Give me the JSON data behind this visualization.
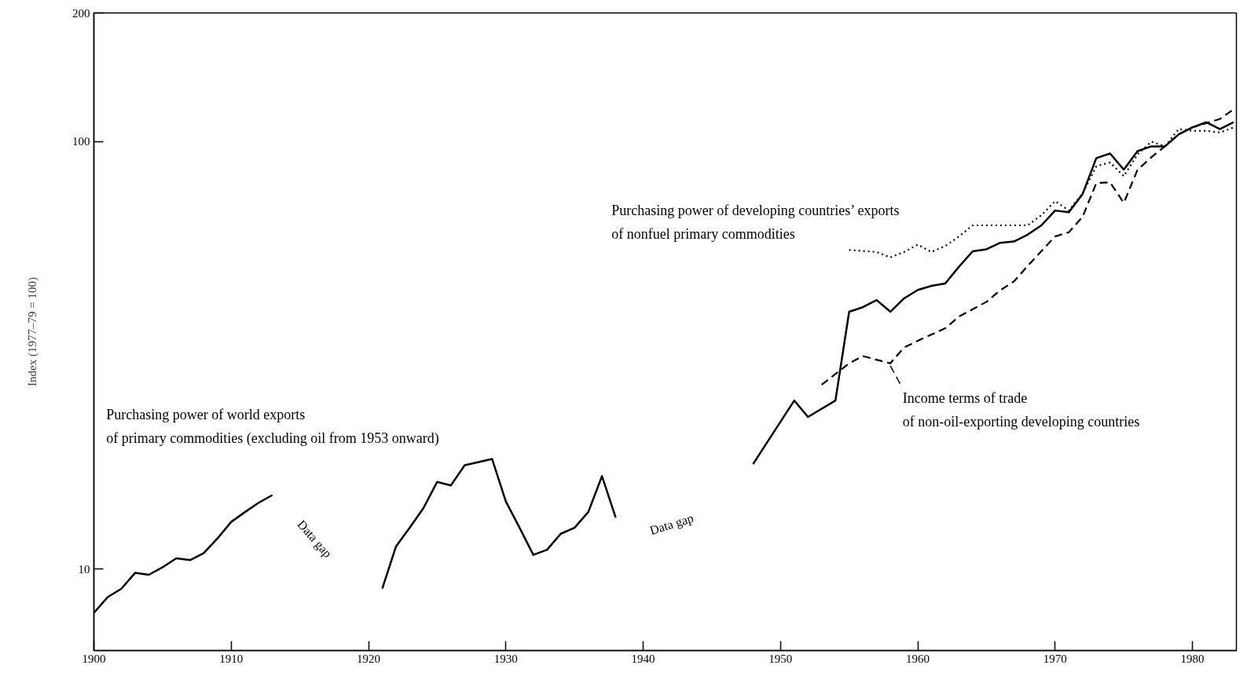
{
  "chart_data": {
    "type": "line",
    "ylabel": "Index (1977–79 = 100)",
    "log": "y",
    "xlim": [
      1900,
      1983.2
    ],
    "ylim": [
      6.45,
      200
    ],
    "xticks": [
      1900,
      1910,
      1920,
      1930,
      1940,
      1950,
      1960,
      1970,
      1980
    ],
    "yticks": [
      10,
      100,
      200
    ],
    "grid": false,
    "annotations": [
      "Data gap",
      "Data gap"
    ],
    "series": [
      {
        "name": "Purchasing power of world exports\nof primary commodities (excluding oil from 1953 onward)",
        "color": "#000000",
        "line_style": "solid",
        "x": [
          1900,
          1901,
          1902,
          1903,
          1904,
          1905,
          1906,
          1907,
          1908,
          1909,
          1910,
          1911,
          1912,
          1913,
          1914,
          1921,
          1922,
          1923,
          1924,
          1925,
          1926,
          1927,
          1928,
          1929,
          1930,
          1931,
          1932,
          1933,
          1934,
          1935,
          1936,
          1937,
          1938,
          1939,
          1948,
          1951,
          1952,
          1954,
          1955,
          1956,
          1957,
          1958,
          1959,
          1960,
          1961,
          1962,
          1963,
          1964,
          1965,
          1966,
          1967,
          1968,
          1969,
          1970,
          1971,
          1972,
          1973,
          1974,
          1975,
          1976,
          1977,
          1978,
          1979,
          1980,
          1981,
          1982,
          1983
        ],
        "values": [
          7.9,
          8.6,
          9.0,
          9.8,
          9.7,
          10.1,
          10.6,
          10.5,
          10.9,
          11.8,
          12.9,
          13.6,
          14.3,
          14.9,
          null,
          9.0,
          11.3,
          12.5,
          13.9,
          16.0,
          15.7,
          17.5,
          17.8,
          18.1,
          14.4,
          12.5,
          10.8,
          11.1,
          12.1,
          12.5,
          13.6,
          16.5,
          13.2,
          null,
          17.6,
          24.8,
          22.7,
          24.8,
          40,
          41,
          42.6,
          40,
          43,
          45,
          46,
          46.6,
          51,
          55.4,
          56,
          58,
          58.4,
          60.6,
          63.7,
          69,
          68.4,
          75.4,
          91.5,
          93.8,
          86,
          95,
          97.5,
          97.5,
          104,
          108,
          111,
          107,
          111
        ]
      },
      {
        "name": "Purchasing power of developing countries’ exports\nof nonfuel primary commodities",
        "color": "#000000",
        "line_style": "dotted",
        "x": [
          1955,
          1957,
          1958,
          1959,
          1960,
          1961,
          1962,
          1963,
          1964,
          1968,
          1969,
          1970,
          1971,
          1972,
          1973,
          1974,
          1975,
          1976,
          1977,
          1978,
          1979,
          1980,
          1981,
          1982,
          1983
        ],
        "values": [
          55.8,
          55.2,
          53.6,
          55.2,
          57.4,
          55.2,
          57,
          60,
          63.7,
          63.7,
          67.3,
          72.6,
          69,
          75.7,
          87.6,
          89.4,
          83,
          93.4,
          100,
          97.5,
          107,
          106,
          106,
          105,
          108
        ]
      },
      {
        "name": "Income terms of trade\nof non-oil-exporting developing countries",
        "color": "#000000",
        "line_style": "dashed",
        "x": [
          1953,
          1955,
          1956,
          1958,
          1959,
          1960,
          1962,
          1963,
          1965,
          1966,
          1967,
          1968,
          1970,
          1971,
          1972,
          1973,
          1974,
          1975,
          1976,
          1977,
          1978,
          1979,
          1980,
          1982,
          1983
        ],
        "values": [
          27,
          30.3,
          31.5,
          30.3,
          33,
          34.2,
          36.6,
          39,
          42.2,
          44.9,
          47.1,
          51.2,
          60,
          61.4,
          66.7,
          80,
          80.3,
          71.9,
          85.9,
          91.9,
          97.5,
          104,
          108,
          113,
          119
        ]
      }
    ]
  }
}
